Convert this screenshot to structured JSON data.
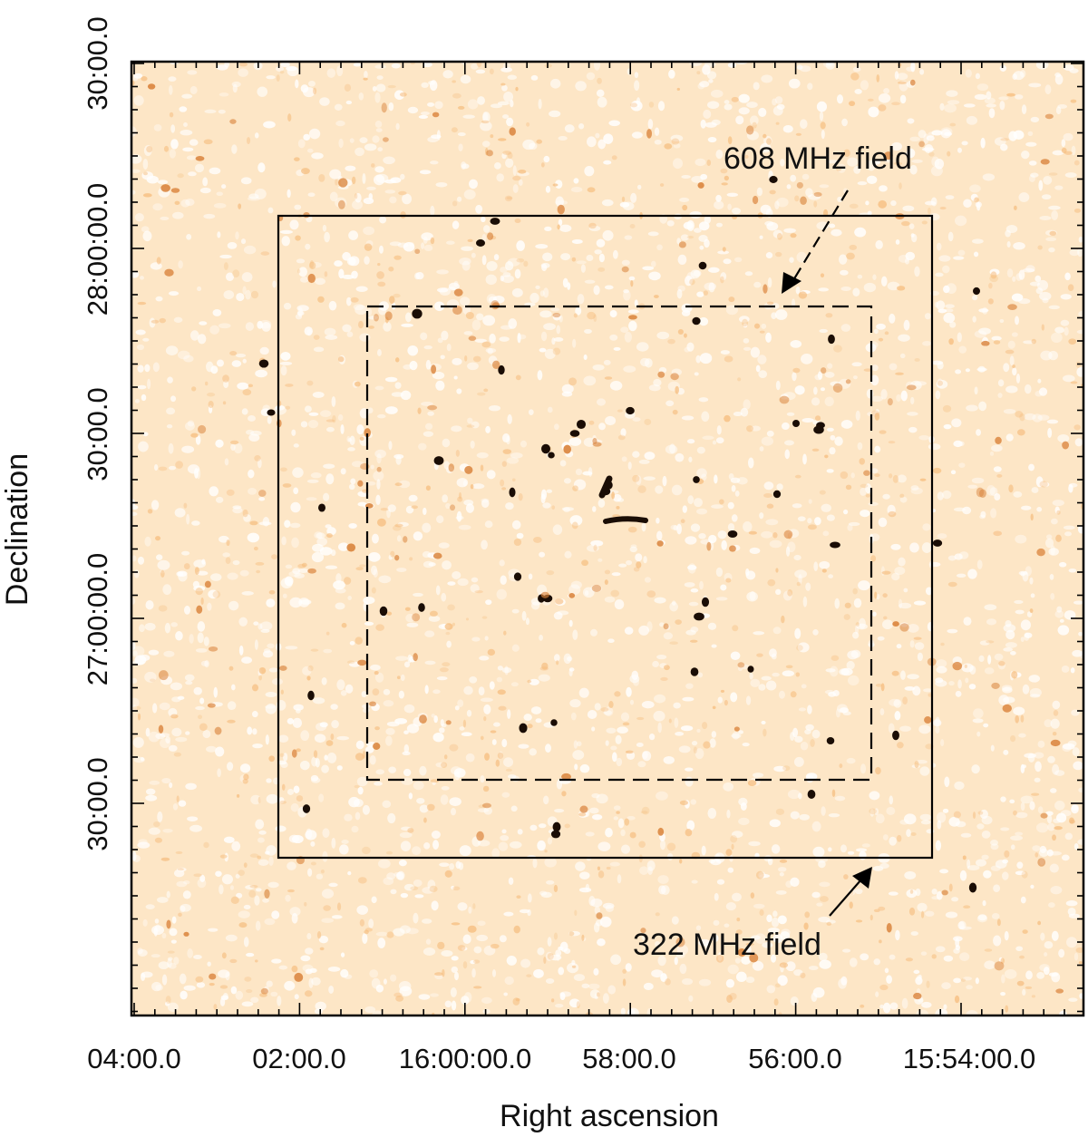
{
  "figure": {
    "xlabel": "Right ascension",
    "ylabel": "Declination",
    "x_ticks": [
      "04:00.0",
      "02:00.0",
      "16:00:00.0",
      "58:00.0",
      "56:00.0",
      "15:54:00.0"
    ],
    "y_ticks": [
      "30:00.0",
      "28:00:00.0",
      "30:00.0",
      "27:00:00.0",
      "30:00.0"
    ],
    "annotations": {
      "field_608": "608 MHz field",
      "field_322": "322 MHz field"
    },
    "colors": {
      "background": "#fde6c6",
      "speckle": "#ffffff",
      "source_dark": "#1a0d05",
      "source_faint": "#d9823a",
      "frame": "#000000"
    }
  }
}
